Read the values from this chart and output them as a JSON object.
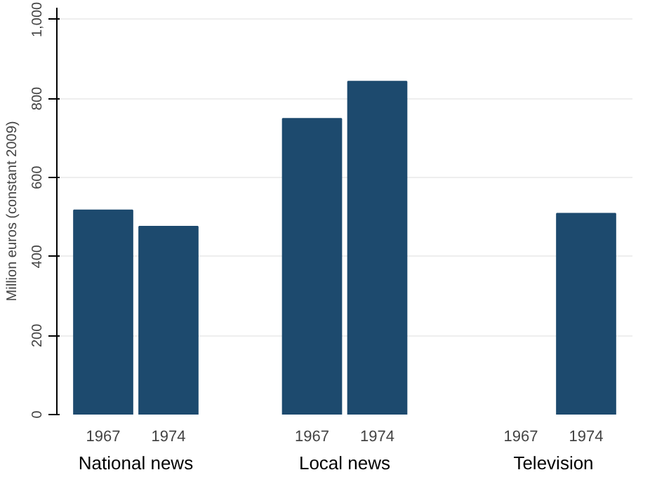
{
  "chart_data": {
    "type": "bar",
    "ylabel": "Million euros (constant 2009)",
    "categories": [
      "National news",
      "Local news",
      "Television"
    ],
    "series": [
      {
        "name": "1967",
        "color": "#1d4a6e",
        "values": [
          517,
          749,
          null
        ]
      },
      {
        "name": "1974",
        "color": "#1d4a6e",
        "values": [
          476,
          843,
          509
        ]
      }
    ],
    "ylim": [
      0,
      1030
    ],
    "yticks": [
      0,
      200,
      400,
      600,
      800,
      {
        "value": 1000,
        "label": "1,000"
      }
    ],
    "grid": "y"
  }
}
